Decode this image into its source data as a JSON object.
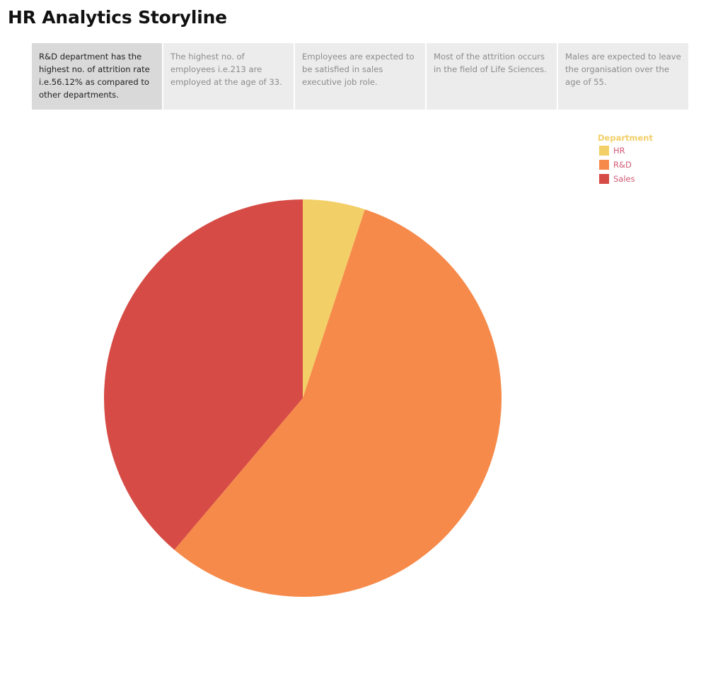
{
  "page": {
    "title": "HR Analytics Storyline"
  },
  "storyline": {
    "active_index": 0,
    "points": [
      {
        "text": "R&D department has the highest no. of attrition rate i.e.56.12% as compared to other departments."
      },
      {
        "text": "The highest no. of employees i.e.213 are employed at the age of  33."
      },
      {
        "text": "Employees are expected to be satisfied in sales executive job role."
      },
      {
        "text": "Most of the attrition occurs in the field of Life Sciences."
      },
      {
        "text": "Males are expected to leave the organisation over the age of 55."
      }
    ]
  },
  "legend": {
    "title": "Department",
    "items": [
      {
        "label": "HR",
        "color": "#f3cf67"
      },
      {
        "label": "R&D",
        "color": "#f68a4a"
      },
      {
        "label": "Sales",
        "color": "#d64b45"
      }
    ]
  },
  "chart_data": {
    "type": "pie",
    "categories": [
      "HR",
      "R&D",
      "Sales"
    ],
    "values": [
      5.06,
      56.12,
      38.82
    ],
    "colors": [
      "#f3cf67",
      "#f68a4a",
      "#d64b45"
    ],
    "start": "12 o'clock",
    "direction": "clockwise",
    "legend_title": "Department",
    "legend_position": "top-right"
  }
}
